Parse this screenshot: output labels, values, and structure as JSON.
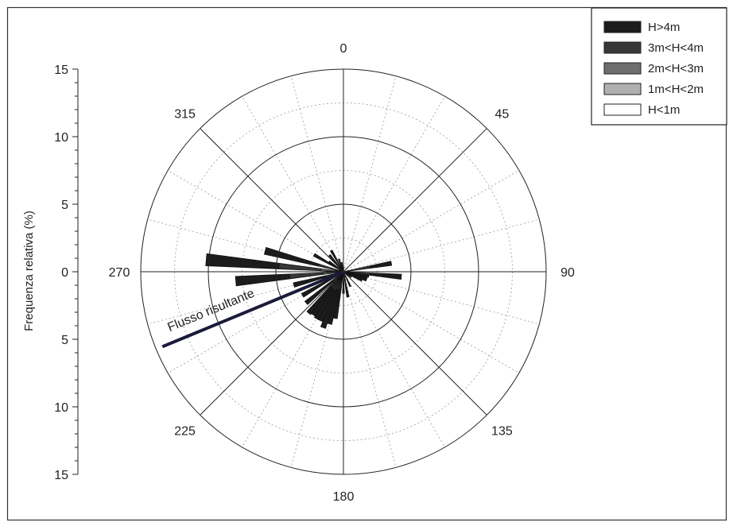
{
  "chart_data": {
    "type": "polar-stacked-bar",
    "ylabel": "Frequenza relativa (%)",
    "r_max": 15,
    "rings": [
      5,
      10,
      15
    ],
    "y_ticks": [
      "15",
      "10",
      "5",
      "0",
      "5",
      "10",
      "15"
    ],
    "direction_labels": [
      {
        "angle": 0,
        "text": "0"
      },
      {
        "angle": 45,
        "text": "45"
      },
      {
        "angle": 90,
        "text": "90"
      },
      {
        "angle": 135,
        "text": "135"
      },
      {
        "angle": 180,
        "text": "180"
      },
      {
        "angle": 225,
        "text": "225"
      },
      {
        "angle": 270,
        "text": "270"
      },
      {
        "angle": 315,
        "text": "315"
      }
    ],
    "legend": [
      {
        "label": "H>4m",
        "color": "#1c1c1c"
      },
      {
        "label": "3m<H<4m",
        "color": "#383838"
      },
      {
        "label": "2m<H<3m",
        "color": "#6e6e6e"
      },
      {
        "label": "1m<H<2m",
        "color": "#b0b0b0"
      },
      {
        "label": "H<1m",
        "color": "#ffffff"
      }
    ],
    "sector_width_deg": 5,
    "sectors": [
      {
        "angle": 5,
        "values": [
          0.3,
          0.0,
          0.0,
          0.0,
          0.0
        ]
      },
      {
        "angle": 80,
        "values": [
          1.6,
          1.5,
          0.3,
          0.2,
          0.0
        ]
      },
      {
        "angle": 95,
        "values": [
          2.3,
          1.5,
          0.3,
          0.2,
          0.0
        ]
      },
      {
        "angle": 100,
        "values": [
          1.3,
          0.5,
          0.1,
          0.0,
          0.0
        ]
      },
      {
        "angle": 105,
        "values": [
          1.1,
          0.6,
          0.1,
          0.0,
          0.0
        ]
      },
      {
        "angle": 110,
        "values": [
          1.0,
          0.6,
          0.2,
          0.0,
          0.0
        ]
      },
      {
        "angle": 115,
        "values": [
          0.7,
          0.6,
          0.2,
          0.0,
          0.0
        ]
      },
      {
        "angle": 125,
        "values": [
          0.5,
          0.2,
          0.0,
          0.0,
          0.0
        ]
      },
      {
        "angle": 155,
        "values": [
          0.8,
          0.3,
          0.1,
          0.0,
          0.0
        ]
      },
      {
        "angle": 170,
        "values": [
          1.5,
          0.3,
          0.1,
          0.0,
          0.0
        ]
      },
      {
        "angle": 180,
        "values": [
          1.3,
          0.2,
          0.1,
          0.0,
          0.0
        ]
      },
      {
        "angle": 190,
        "values": [
          2.3,
          0.8,
          0.3,
          0.1,
          0.0
        ]
      },
      {
        "angle": 195,
        "values": [
          2.6,
          0.8,
          0.4,
          0.2,
          0.0
        ]
      },
      {
        "angle": 200,
        "values": [
          3.0,
          0.8,
          0.4,
          0.2,
          0.0
        ]
      },
      {
        "angle": 205,
        "values": [
          2.5,
          0.9,
          0.4,
          0.2,
          0.0
        ]
      },
      {
        "angle": 210,
        "values": [
          2.5,
          0.9,
          0.4,
          0.2,
          0.0
        ]
      },
      {
        "angle": 215,
        "values": [
          2.4,
          0.9,
          0.4,
          0.2,
          0.0
        ]
      },
      {
        "angle": 220,
        "values": [
          2.6,
          0.8,
          0.4,
          0.2,
          0.0
        ]
      },
      {
        "angle": 230,
        "values": [
          2.5,
          0.6,
          0.3,
          0.2,
          0.0
        ]
      },
      {
        "angle": 240,
        "values": [
          2.4,
          0.6,
          0.3,
          0.2,
          0.0
        ]
      },
      {
        "angle": 255,
        "values": [
          2.4,
          0.8,
          0.4,
          0.2,
          0.0
        ]
      },
      {
        "angle": 265,
        "values": [
          4.0,
          2.5,
          0.6,
          0.7,
          0.2
        ]
      },
      {
        "angle": 275,
        "values": [
          5.4,
          3.1,
          0.8,
          0.7,
          0.2
        ]
      },
      {
        "angle": 285,
        "values": [
          4.1,
          1.6,
          0.3,
          0.0,
          0.0
        ]
      },
      {
        "angle": 300,
        "values": [
          2.1,
          0.2,
          0.2,
          0.0,
          0.0
        ]
      },
      {
        "angle": 305,
        "values": [
          1.0,
          0.2,
          0.1,
          0.0,
          0.0
        ]
      },
      {
        "angle": 320,
        "values": [
          1.1,
          0.4,
          0.1,
          0.0,
          0.0
        ]
      },
      {
        "angle": 330,
        "values": [
          1.4,
          0.3,
          0.1,
          0.0,
          0.0
        ]
      },
      {
        "angle": 340,
        "values": [
          0.8,
          0.2,
          0.0,
          0.0,
          0.0
        ]
      },
      {
        "angle": 350,
        "values": [
          0.5,
          0.2,
          0.0,
          0.0,
          0.0
        ]
      }
    ],
    "resultant": {
      "angle": 247.5,
      "length": 14.5,
      "label": "Flusso risultante"
    }
  }
}
